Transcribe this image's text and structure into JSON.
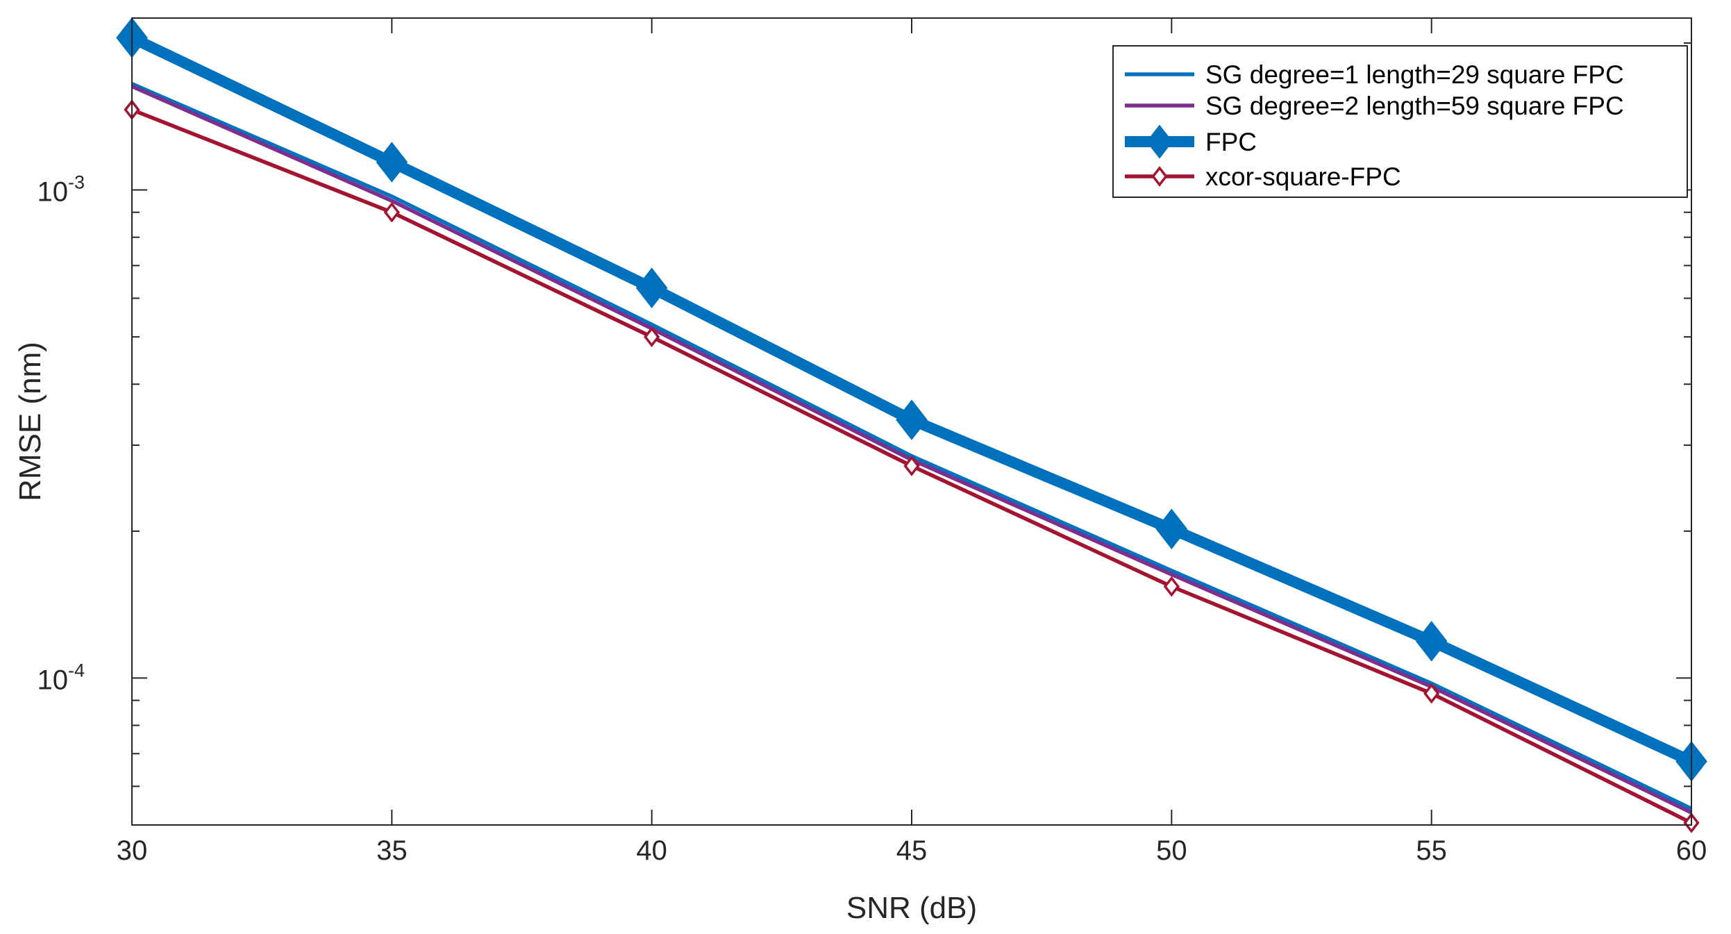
{
  "chart_data": {
    "type": "line",
    "yscale": "log",
    "x": [
      30,
      35,
      40,
      45,
      50,
      55,
      60
    ],
    "xlim": [
      30,
      60
    ],
    "ylim": [
      5e-05,
      0.00225
    ],
    "xlabel": "SNR (dB)",
    "ylabel": "RMSE (nm)",
    "xticks": [
      "30",
      "35",
      "40",
      "45",
      "50",
      "55",
      "60"
    ],
    "yticks": [
      {
        "value": 0.001,
        "base": "10",
        "exp": "-3"
      },
      {
        "value": 0.0001,
        "base": "10",
        "exp": "-4"
      }
    ],
    "legend_position": "top-right",
    "series": [
      {
        "name": "SG degree=1 length=29 square FPC",
        "color": "#0072BD",
        "marker": "none",
        "thick": false,
        "values": [
          0.00165,
          0.00097,
          0.00053,
          0.000285,
          0.000166,
          9.75e-05,
          5.4e-05
        ]
      },
      {
        "name": "SG degree=2 length=59 square FPC",
        "color": "#7E2F8E",
        "marker": "none",
        "thick": false,
        "values": [
          0.00163,
          0.00095,
          0.00052,
          0.00028,
          0.000163,
          9.6e-05,
          5.3e-05
        ]
      },
      {
        "name": "FPC",
        "color": "#0072BD",
        "marker": "diamond",
        "thick": true,
        "values": [
          0.00205,
          0.00114,
          0.00063,
          0.000338,
          0.000202,
          0.000119,
          6.75e-05
        ]
      },
      {
        "name": "xcor-square-FPC",
        "color": "#A2142F",
        "marker": "diamond-open",
        "thick": false,
        "values": [
          0.00146,
          0.0009,
          0.0005,
          0.000272,
          0.000154,
          9.3e-05,
          5.05e-05
        ]
      }
    ]
  }
}
